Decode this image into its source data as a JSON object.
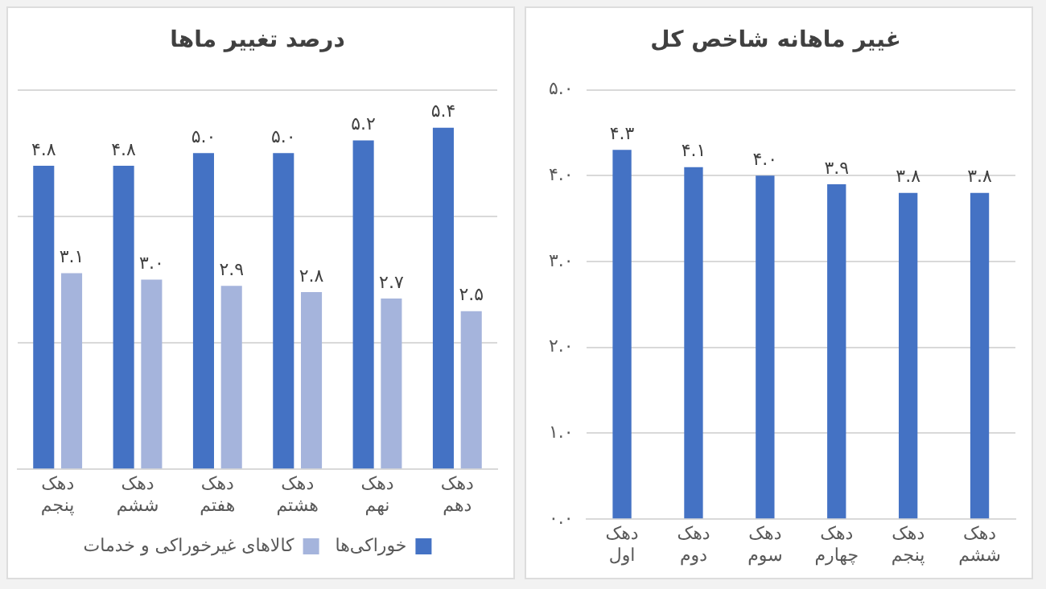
{
  "chart_data": [
    {
      "type": "bar",
      "title": "درصد تغییر ماها",
      "categories": [
        "دهک پنجم",
        "دهک ششم",
        "دهک هفتم",
        "دهک هشتم",
        "دهک نهم",
        "دهک دهم"
      ],
      "series": [
        {
          "name": "خوراکی‌ها",
          "color": "#4472c4",
          "values": [
            4.8,
            4.8,
            5.0,
            5.0,
            5.2,
            5.4
          ],
          "value_labels": [
            "۴.۸",
            "۴.۸",
            "۵.۰",
            "۵.۰",
            "۵.۲",
            "۵.۴"
          ]
        },
        {
          "name": "کالاهای غیرخوراکی و خدمات",
          "color": "#a5b4dc",
          "values": [
            3.1,
            3.0,
            2.9,
            2.8,
            2.7,
            2.5
          ],
          "value_labels": [
            "۳.۱",
            "۳.۰",
            "۲.۹",
            "۲.۸",
            "۲.۷",
            "۲.۵"
          ]
        }
      ],
      "ylim": [
        0,
        6
      ],
      "yticks": [
        {
          "value": 0,
          "label": null
        },
        {
          "value": 2,
          "label": null
        },
        {
          "value": 4,
          "label": null
        },
        {
          "value": 6,
          "label": null
        }
      ],
      "tick_labels": "x",
      "grid": "y",
      "legend": "bottom"
    },
    {
      "type": "bar",
      "title": "غییر ماهانه شاخص کل",
      "categories": [
        "دهک اول",
        "دهک دوم",
        "دهک سوم",
        "دهک چهارم",
        "دهک پنجم",
        "دهک ششم"
      ],
      "series": [
        {
          "color": "#4472c4",
          "values": [
            4.3,
            4.1,
            4.0,
            3.9,
            3.8,
            3.8
          ],
          "value_labels": [
            "۴.۳",
            "۴.۱",
            "۴.۰",
            "۳.۹",
            "۳.۸",
            "۳.۸"
          ]
        }
      ],
      "ylim": [
        0,
        5
      ],
      "yticks": [
        {
          "value": 0,
          "label": "۰.۰"
        },
        {
          "value": 1,
          "label": "۱.۰"
        },
        {
          "value": 2,
          "label": "۲.۰"
        },
        {
          "value": 3,
          "label": "۳.۰"
        },
        {
          "value": 4,
          "label": "۴.۰"
        },
        {
          "value": 5,
          "label": "۵.۰"
        }
      ],
      "grid": "y",
      "legend": false
    }
  ]
}
